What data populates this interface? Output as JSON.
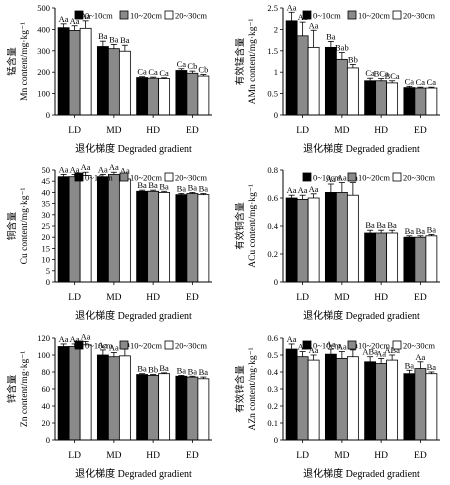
{
  "chart_data": [
    {
      "type": "bar",
      "ylabel_cn": "锰含量",
      "ylabel": "Mn content/mg·kg⁻¹",
      "xlabel": "退化梯度 Degraded gradient",
      "categories": [
        "LD",
        "MD",
        "HD",
        "ED"
      ],
      "ylim": [
        0,
        500
      ],
      "yticks": [
        0,
        100,
        200,
        300,
        400,
        500
      ],
      "series": [
        {
          "name": "0~10cm",
          "values": [
            408,
            320,
            175,
            208
          ],
          "errors": [
            18,
            25,
            4,
            8
          ],
          "labels": [
            "Aa",
            "Ba",
            "Ca",
            "Ca"
          ]
        },
        {
          "name": "10~20cm",
          "values": [
            395,
            310,
            172,
            195
          ],
          "errors": [
            22,
            20,
            5,
            10
          ],
          "labels": [
            "Aa",
            "Ba",
            "Ca",
            "Cb"
          ]
        },
        {
          "name": "20~30cm",
          "values": [
            405,
            298,
            170,
            182
          ],
          "errors": [
            35,
            28,
            4,
            7
          ],
          "labels": [
            "Aa",
            "Ba",
            "Ca",
            "Cb"
          ]
        }
      ]
    },
    {
      "type": "bar",
      "ylabel_cn": "有效锰含量",
      "ylabel": "AMn content/mg·kg⁻¹",
      "xlabel": "退化梯度 Degraded gradient",
      "categories": [
        "LD",
        "MD",
        "HD",
        "ED"
      ],
      "ylim": [
        0,
        2.5
      ],
      "yticks": [
        0,
        0.5,
        1.0,
        1.5,
        2.0,
        2.5
      ],
      "series": [
        {
          "name": "0~10cm",
          "values": [
            2.2,
            1.58,
            0.8,
            0.64
          ],
          "errors": [
            0.2,
            0.14,
            0.06,
            0.03
          ],
          "labels": [
            "Aa",
            "Ba",
            "Ca",
            "Ca"
          ]
        },
        {
          "name": "10~20cm",
          "values": [
            1.85,
            1.3,
            0.8,
            0.63
          ],
          "errors": [
            0.32,
            0.16,
            0.05,
            0.02
          ],
          "labels": [
            "Aa",
            "Bab",
            "BCa",
            "Ca"
          ]
        },
        {
          "name": "20~30cm",
          "values": [
            1.58,
            1.1,
            0.75,
            0.63
          ],
          "errors": [
            0.4,
            0.08,
            0.05,
            0.02
          ],
          "labels": [
            "Aa",
            "Bb",
            "BCa",
            "Ca"
          ]
        }
      ]
    },
    {
      "type": "bar",
      "ylabel_cn": "铜含量",
      "ylabel": "Cu content/mg·kg⁻¹",
      "xlabel": "退化梯度 Degraded gradient",
      "categories": [
        "LD",
        "MD",
        "HD",
        "ED"
      ],
      "ylim": [
        0,
        50
      ],
      "yticks": [
        0,
        5,
        10,
        15,
        20,
        25,
        30,
        35,
        40,
        45,
        50
      ],
      "series": [
        {
          "name": "0~10cm",
          "values": [
            47,
            47,
            40.5,
            39
          ],
          "errors": [
            1,
            1,
            0.5,
            0.5
          ],
          "labels": [
            "Aa",
            "Aa",
            "Ba",
            "Ba"
          ]
        },
        {
          "name": "10~20cm",
          "values": [
            47,
            48,
            40.5,
            39.5
          ],
          "errors": [
            1,
            1,
            0.5,
            0.5
          ],
          "labels": [
            "Aa",
            "Aa",
            "Ba",
            "Ba"
          ]
        },
        {
          "name": "20~30cm",
          "values": [
            47.5,
            46,
            40,
            39
          ],
          "errors": [
            1.5,
            1.5,
            0.5,
            0.5
          ],
          "labels": [
            "Aa",
            "Aa",
            "Ba",
            "Ba"
          ]
        }
      ]
    },
    {
      "type": "bar",
      "ylabel_cn": "有效铜含量",
      "ylabel": "ACu content/mg·kg⁻¹",
      "xlabel": "退化梯度 Degraded gradient",
      "categories": [
        "LD",
        "MD",
        "HD",
        "ED"
      ],
      "ylim": [
        0,
        0.8
      ],
      "yticks": [
        0,
        0.2,
        0.4,
        0.6,
        0.8
      ],
      "series": [
        {
          "name": "0~10cm",
          "values": [
            0.6,
            0.64,
            0.35,
            0.32
          ],
          "errors": [
            0.02,
            0.06,
            0.02,
            0.01
          ],
          "labels": [
            "Aa",
            "Aa",
            "Ba",
            "Ba"
          ]
        },
        {
          "name": "10~20cm",
          "values": [
            0.59,
            0.64,
            0.35,
            0.32
          ],
          "errors": [
            0.03,
            0.07,
            0.02,
            0.01
          ],
          "labels": [
            "Aa",
            "Aa",
            "Ba",
            "Ba"
          ]
        },
        {
          "name": "20~30cm",
          "values": [
            0.6,
            0.62,
            0.35,
            0.33
          ],
          "errors": [
            0.03,
            0.09,
            0.02,
            0.01
          ],
          "labels": [
            "Aa",
            "Aa",
            "Ba",
            "Ba"
          ]
        }
      ]
    },
    {
      "type": "bar",
      "ylabel_cn": "锌含量",
      "ylabel": "Zn content/mg·kg⁻¹",
      "xlabel": "退化梯度 Degraded gradient",
      "categories": [
        "LD",
        "MD",
        "HD",
        "ED"
      ],
      "ylim": [
        0,
        120
      ],
      "yticks": [
        0,
        20,
        40,
        60,
        80,
        100,
        120
      ],
      "series": [
        {
          "name": "0~10cm",
          "values": [
            110,
            100,
            77,
            75
          ],
          "errors": [
            3,
            6,
            1,
            1
          ],
          "labels": [
            "Aa",
            "Aa",
            "Ba",
            "Ba"
          ]
        },
        {
          "name": "10~20cm",
          "values": [
            110,
            98,
            76,
            74
          ],
          "errors": [
            3,
            5,
            1,
            1
          ],
          "labels": [
            "Aa",
            "Aa",
            "Bb",
            "Ba"
          ]
        },
        {
          "name": "20~30cm",
          "values": [
            112,
            99,
            78,
            72
          ],
          "errors": [
            4,
            8,
            1,
            2
          ],
          "labels": [
            "Aa",
            "Aa",
            "Ba",
            "Ba"
          ]
        }
      ]
    },
    {
      "type": "bar",
      "ylabel_cn": "有效锌含量",
      "ylabel": "AZn content/mg·kg⁻¹",
      "xlabel": "退化梯度 Degraded gradient",
      "categories": [
        "LD",
        "MD",
        "HD",
        "ED"
      ],
      "ylim": [
        0,
        0.6
      ],
      "yticks": [
        0,
        0.1,
        0.2,
        0.3,
        0.4,
        0.5,
        0.6
      ],
      "series": [
        {
          "name": "0~10cm",
          "values": [
            0.535,
            0.505,
            0.46,
            0.39
          ],
          "errors": [
            0.03,
            0.03,
            0.03,
            0.02
          ],
          "labels": [
            "Aa",
            "Aa",
            "ABa",
            "Ba"
          ]
        },
        {
          "name": "10~20cm",
          "values": [
            0.49,
            0.48,
            0.45,
            0.42
          ],
          "errors": [
            0.03,
            0.04,
            0.03,
            0.04
          ],
          "labels": [
            "Aa",
            "Aa",
            "Aa",
            "Aa"
          ]
        },
        {
          "name": "20~30cm",
          "values": [
            0.47,
            0.49,
            0.47,
            0.39
          ],
          "errors": [
            0.03,
            0.04,
            0.03,
            0.01
          ],
          "labels": [
            "Aa",
            "Aa",
            "ABa",
            "Ba"
          ]
        }
      ]
    }
  ],
  "colors": {
    "series": [
      "#000000",
      "#8a8a8a",
      "#ffffff"
    ],
    "axis": "#000000"
  }
}
